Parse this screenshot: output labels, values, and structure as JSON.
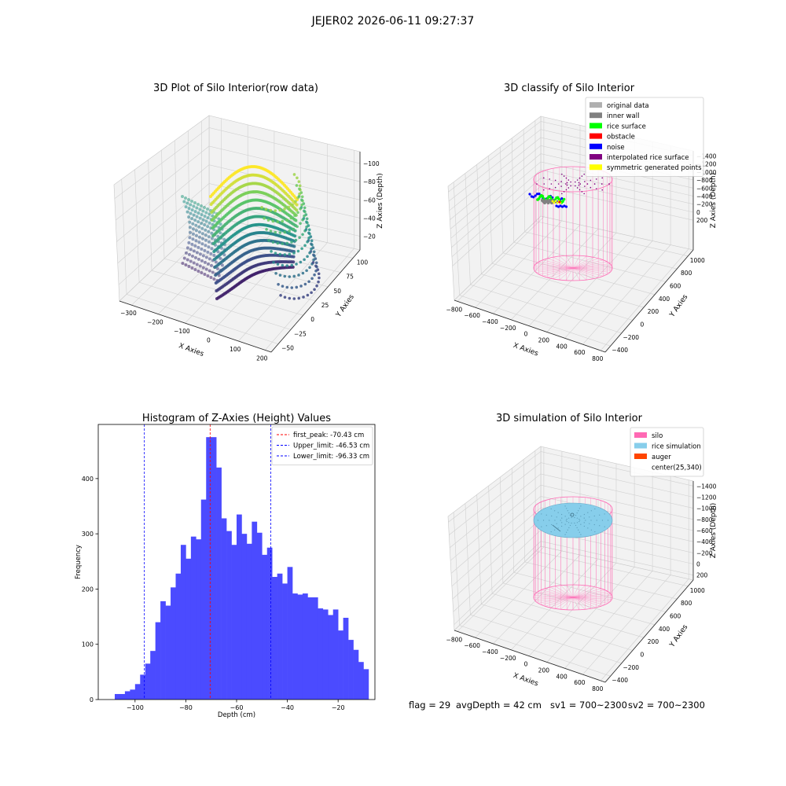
{
  "figure": {
    "suptitle": "JEJER02 2026-06-11 09:27:37",
    "status_line": {
      "flag": "flag = 29",
      "avg_depth": "avgDepth = 42 cm",
      "sv1": "sv1 = 700~2300",
      "sv2": "sv2 = 700~2300"
    }
  },
  "colors": {
    "hist_bar": "#4b4bff",
    "peak_line": "#ff0000",
    "limit_line": "#0000ff",
    "silo": "#ff69b4",
    "rice_simulation": "#87ceeb",
    "auger": "#ff4500",
    "original_data": "#b0b0b0",
    "inner_wall": "#808080",
    "rice_surface": "#00ff00",
    "obstacle": "#ff0000",
    "noise": "#0000ff",
    "interpolated_rice_surface": "#800080",
    "symmetric_generated_points": "#ffff00",
    "pane": "#f2f2f2",
    "grid": "#d0d0d0"
  },
  "chart_data": [
    {
      "type": "scatter",
      "title": "3D Plot of Silo Interior(row data)",
      "xlabel": "X Axies",
      "ylabel": "Y Axies",
      "zlabel": "Z Axies (Depth)",
      "x_ticks": [
        "−300",
        "−200",
        "−100",
        "0",
        "100",
        "200"
      ],
      "y_ticks": [
        "−50",
        "−25",
        "0",
        "25",
        "50",
        "75",
        "100"
      ],
      "z_ticks": [
        "−100",
        "−80",
        "−60",
        "−40",
        "−20"
      ],
      "xlim": [
        -320,
        210
      ],
      "ylim": [
        -60,
        110
      ],
      "zlim": [
        -110,
        -10
      ],
      "colormap": "viridis",
      "grid": true
    },
    {
      "type": "scatter",
      "title": "3D classify of Silo Interior",
      "xlabel": "X Axies",
      "ylabel": "Y Axies",
      "zlabel": "Z Axies (Depth)",
      "x_ticks": [
        "−800",
        "−600",
        "−400",
        "−200",
        "0",
        "200",
        "400",
        "600",
        "800"
      ],
      "y_ticks": [
        "−400",
        "−200",
        "0",
        "200",
        "400",
        "600",
        "800",
        "1000"
      ],
      "z_ticks": [
        "−1400",
        "−1200",
        "−1000",
        "−800",
        "−600",
        "−400",
        "−200",
        "0",
        "200"
      ],
      "legend_position": "top-right",
      "legend": [
        {
          "label": "original data",
          "color": "#b0b0b0"
        },
        {
          "label": "inner wall",
          "color": "#808080"
        },
        {
          "label": "rice surface",
          "color": "#00ff00"
        },
        {
          "label": "obstacle",
          "color": "#ff0000"
        },
        {
          "label": "noise",
          "color": "#0000ff"
        },
        {
          "label": "interpolated rice surface",
          "color": "#800080"
        },
        {
          "label": "symmetric generated points",
          "color": "#ffff00"
        }
      ],
      "grid": true
    },
    {
      "type": "bar",
      "title": "Histogram of Z-Axies (Height) Values",
      "xlabel": "Depth (cm)",
      "ylabel": "Frequency",
      "x_ticks": [
        -100,
        -80,
        -60,
        -40,
        -20
      ],
      "y_ticks": [
        0,
        100,
        200,
        300,
        400
      ],
      "xlim": [
        -114.5,
        -5.5
      ],
      "ylim": [
        0,
        498
      ],
      "bin_edges": [
        -108,
        -106,
        -104,
        -102,
        -100,
        -98,
        -96,
        -94,
        -92,
        -90,
        -88,
        -86,
        -84,
        -82,
        -80,
        -78,
        -76,
        -74,
        -72,
        -70,
        -68,
        -66,
        -64,
        -62,
        -60,
        -58,
        -56,
        -54,
        -52,
        -50,
        -48,
        -46,
        -44,
        -42,
        -40,
        -38,
        -36,
        -34,
        -32,
        -30,
        -28,
        -26,
        -24,
        -22,
        -20,
        -18,
        -16,
        -14,
        -12,
        -10,
        -8
      ],
      "values": [
        10,
        10,
        15,
        18,
        28,
        45,
        65,
        88,
        140,
        178,
        170,
        203,
        228,
        280,
        255,
        295,
        290,
        362,
        475,
        475,
        420,
        328,
        305,
        280,
        335,
        300,
        282,
        322,
        302,
        262,
        275,
        222,
        228,
        210,
        240,
        192,
        190,
        192,
        185,
        185,
        165,
        163,
        153,
        163,
        125,
        148,
        108,
        90,
        68,
        55
      ],
      "vlines": [
        {
          "label": "first_peak: -70.43 cm",
          "x": -70.43,
          "color": "#ff0000"
        },
        {
          "label": "Upper_limit: -46.53 cm",
          "x": -46.53,
          "color": "#0000ff"
        },
        {
          "label": "Lower_limit: -96.33 cm",
          "x": -96.33,
          "color": "#0000ff"
        }
      ],
      "legend_position": "top-right"
    },
    {
      "type": "scatter",
      "title": "3D simulation of Silo Interior",
      "xlabel": "X Axies",
      "ylabel": "Y Axies",
      "zlabel": "Z Axies (Depth)",
      "x_ticks": [
        "−800",
        "−600",
        "−400",
        "−200",
        "0",
        "200",
        "400",
        "600",
        "800"
      ],
      "y_ticks": [
        "−400",
        "−200",
        "0",
        "200",
        "400",
        "600",
        "800",
        "1000"
      ],
      "z_ticks": [
        "−1400",
        "−1200",
        "−1000",
        "−800",
        "−600",
        "−400",
        "−200",
        "0",
        "200"
      ],
      "legend_position": "top-right",
      "legend": [
        {
          "label": "silo",
          "color": "#ff69b4"
        },
        {
          "label": "rice simulation",
          "color": "#87ceeb"
        },
        {
          "label": "auger",
          "color": "#ff4500"
        },
        {
          "label": "center(25,340)",
          "color": ""
        }
      ],
      "grid": true
    }
  ]
}
